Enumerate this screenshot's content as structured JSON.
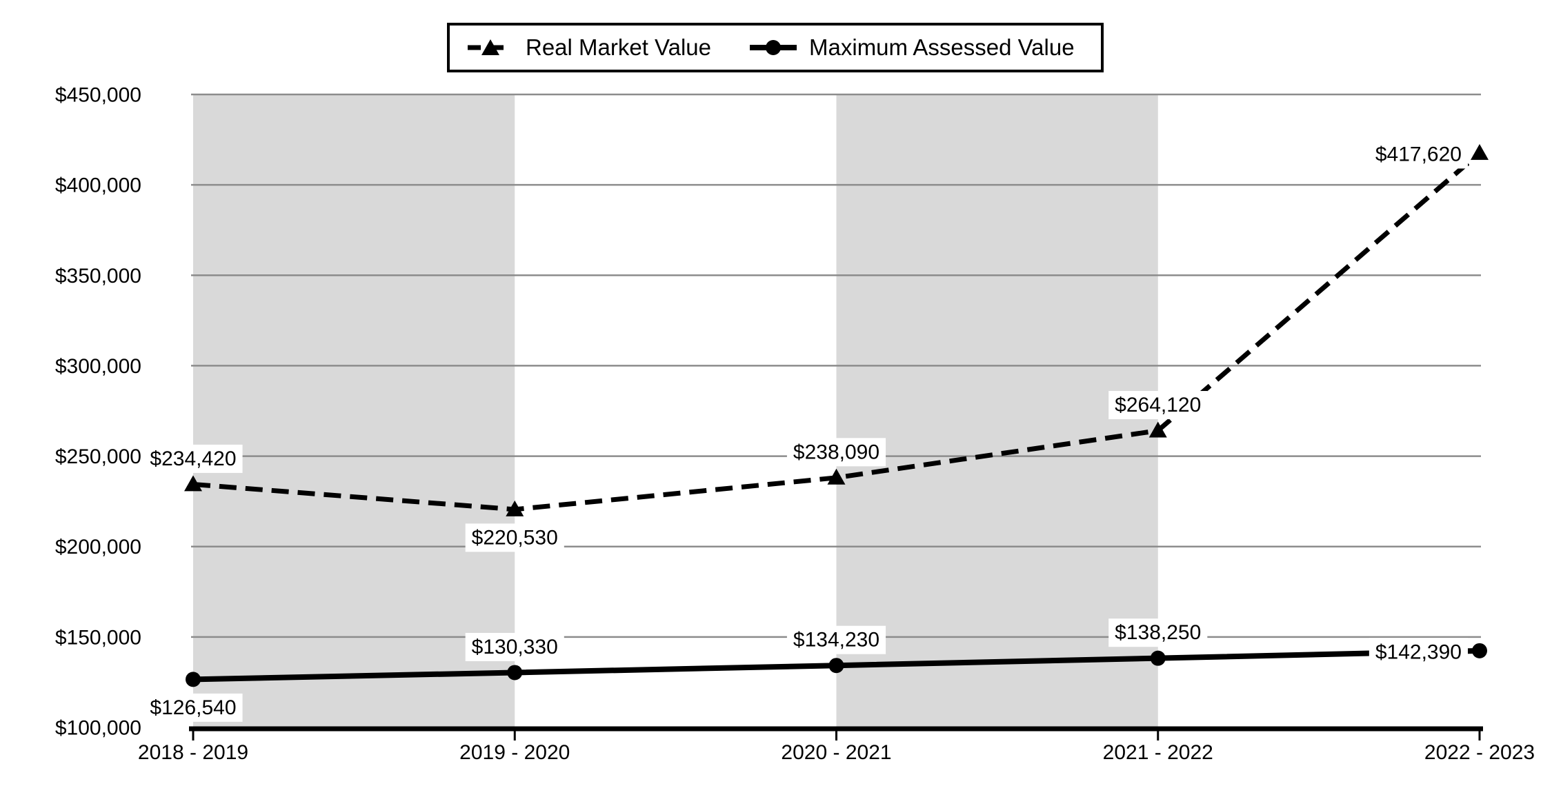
{
  "chart_data": {
    "type": "line",
    "categories": [
      "2018 - 2019",
      "2019 - 2020",
      "2020 - 2021",
      "2021 - 2022",
      "2022 - 2023"
    ],
    "series": [
      {
        "name": "Real Market Value",
        "values": [
          234420,
          220530,
          238090,
          264120,
          417620
        ],
        "labels": [
          "$234,420",
          "$220,530",
          "$238,090",
          "$264,120",
          "$417,620"
        ],
        "line_style": "dashed",
        "marker": "triangle",
        "label_positions": [
          "above",
          "below",
          "above",
          "above",
          "left"
        ]
      },
      {
        "name": "Maximum Assessed Value",
        "values": [
          126540,
          130330,
          134230,
          138250,
          142390
        ],
        "labels": [
          "$126,540",
          "$130,330",
          "$134,230",
          "$138,250",
          "$142,390"
        ],
        "line_style": "solid",
        "marker": "circle",
        "label_positions": [
          "below",
          "above",
          "above",
          "above",
          "left"
        ]
      }
    ],
    "ylim": [
      100000,
      450000
    ],
    "y_ticks": [
      {
        "value": 100000,
        "label": "$100,000"
      },
      {
        "value": 150000,
        "label": "$150,000"
      },
      {
        "value": 200000,
        "label": "$200,000"
      },
      {
        "value": 250000,
        "label": "$250,000"
      },
      {
        "value": 300000,
        "label": "$300,000"
      },
      {
        "value": 350000,
        "label": "$350,000"
      },
      {
        "value": 400000,
        "label": "$400,000"
      },
      {
        "value": 450000,
        "label": "$450,000"
      }
    ],
    "grid": true,
    "legend_position": "top",
    "shaded_bands": [
      [
        0,
        1
      ],
      [
        2,
        3
      ]
    ],
    "colors": {
      "series": "#000000",
      "grid": "#8c8c8c",
      "band": "#d9d9d9",
      "axis": "#000000",
      "label_bg": "#ffffff",
      "background": "#ffffff"
    }
  }
}
